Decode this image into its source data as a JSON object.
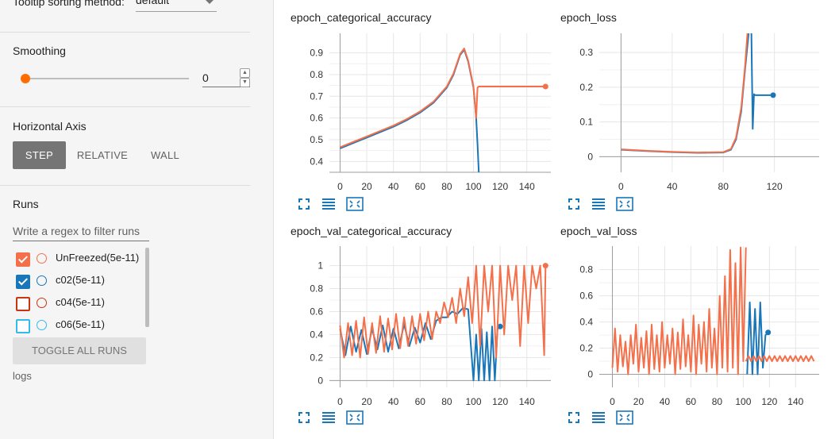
{
  "sidebar": {
    "tooltip_sorting_label": "Tooltip sorting method:",
    "tooltip_sorting_value": "default",
    "smoothing_label": "Smoothing",
    "smoothing_value": 0,
    "smoothing_input": "0",
    "horizontal_axis_label": "Horizontal Axis",
    "axis_buttons": [
      {
        "label": "STEP",
        "active": true
      },
      {
        "label": "RELATIVE",
        "active": false
      },
      {
        "label": "WALL",
        "active": false
      }
    ],
    "runs_label": "Runs",
    "runs_filter_placeholder": "Write a regex to filter runs",
    "runs": [
      {
        "name": "UnFreezed(5e-11)",
        "checked": true,
        "color": "#f4704a"
      },
      {
        "name": "c02(5e-11)",
        "checked": true,
        "color": "#1976b8"
      },
      {
        "name": "c04(5e-11)",
        "checked": false,
        "color": "#cc3311"
      },
      {
        "name": "c06(5e-11)",
        "checked": false,
        "color": "#33bbee"
      }
    ],
    "toggle_all_label": "TOGGLE ALL RUNS",
    "logs_label": "logs"
  },
  "colors": {
    "orange": "#f4704a",
    "blue": "#1976b8",
    "accent": "#ff6d00"
  },
  "chart_data": [
    {
      "type": "line",
      "title": "epoch_categorical_accuracy",
      "xlim": [
        -8,
        158
      ],
      "ylim": [
        0.35,
        0.99
      ],
      "xticks": [
        0,
        20,
        40,
        60,
        80,
        100,
        120,
        140
      ],
      "yticks": [
        0.4,
        0.5,
        0.6,
        0.7,
        0.8,
        0.9
      ],
      "grid": true,
      "series": [
        {
          "color": "#1976b8",
          "x": [
            0,
            10,
            20,
            30,
            40,
            50,
            60,
            70,
            80,
            85,
            90,
            93,
            96,
            100,
            102,
            103,
            104
          ],
          "y": [
            0.46,
            0.485,
            0.51,
            0.535,
            0.56,
            0.59,
            0.625,
            0.67,
            0.74,
            0.8,
            0.89,
            0.915,
            0.86,
            0.74,
            0.6,
            0.48,
            0.35
          ]
        },
        {
          "color": "#f4704a",
          "x": [
            0,
            10,
            20,
            30,
            40,
            50,
            60,
            70,
            80,
            85,
            90,
            93,
            96,
            100,
            102,
            103,
            104,
            154
          ],
          "y": [
            0.465,
            0.49,
            0.515,
            0.54,
            0.565,
            0.595,
            0.63,
            0.675,
            0.745,
            0.805,
            0.895,
            0.92,
            0.865,
            0.745,
            0.6,
            0.74,
            0.745,
            0.745
          ],
          "end_marker": true
        }
      ]
    },
    {
      "type": "line",
      "title": "epoch_loss",
      "xlim": [
        -17,
        155
      ],
      "ylim": [
        -0.045,
        0.355
      ],
      "xticks": [
        0,
        40,
        80,
        120
      ],
      "yticks": [
        0,
        0.1,
        0.2,
        0.3
      ],
      "grid": true,
      "series": [
        {
          "color": "#1976b8",
          "x": [
            0,
            20,
            40,
            60,
            80,
            86,
            90,
            94,
            97,
            100,
            102,
            103,
            104,
            105,
            108,
            119
          ],
          "y": [
            0.02,
            0.016,
            0.013,
            0.011,
            0.012,
            0.02,
            0.05,
            0.13,
            0.25,
            0.36,
            0.36,
            0.08,
            0.18,
            0.177,
            0.177,
            0.177
          ],
          "end_marker": true
        },
        {
          "color": "#f4704a",
          "x": [
            0,
            20,
            40,
            60,
            80,
            86,
            90,
            94,
            97,
            99
          ],
          "y": [
            0.021,
            0.017,
            0.014,
            0.012,
            0.013,
            0.022,
            0.055,
            0.14,
            0.26,
            0.36
          ]
        }
      ]
    },
    {
      "type": "line",
      "title": "epoch_val_categorical_accuracy",
      "xlim": [
        -8,
        158
      ],
      "ylim": [
        -0.06,
        1.17
      ],
      "xticks": [
        0,
        20,
        40,
        60,
        80,
        100,
        120,
        140
      ],
      "yticks": [
        0,
        0.2,
        0.4,
        0.6,
        0.8,
        1
      ],
      "grid": true,
      "series": [
        {
          "color": "#1976b8",
          "x": [
            0,
            4,
            8,
            12,
            16,
            20,
            24,
            28,
            32,
            36,
            40,
            44,
            48,
            52,
            56,
            60,
            64,
            68,
            72,
            76,
            80,
            84,
            88,
            92,
            96,
            100,
            102,
            104,
            106,
            108,
            110,
            112,
            114,
            116,
            118,
            120
          ],
          "y": [
            0.45,
            0.22,
            0.47,
            0.25,
            0.44,
            0.23,
            0.45,
            0.27,
            0.48,
            0.25,
            0.45,
            0.28,
            0.49,
            0.3,
            0.46,
            0.33,
            0.5,
            0.36,
            0.52,
            0.55,
            0.55,
            0.6,
            0.58,
            0.63,
            0.62,
            0.0,
            0.4,
            0.0,
            0.45,
            0.0,
            0.42,
            0.0,
            0.47,
            0.0,
            0.45,
            0.47
          ],
          "end_marker": true
        },
        {
          "color": "#f4704a",
          "x": [
            0,
            3,
            6,
            9,
            12,
            15,
            18,
            21,
            24,
            27,
            30,
            33,
            36,
            39,
            42,
            45,
            48,
            51,
            54,
            57,
            60,
            63,
            66,
            69,
            72,
            75,
            78,
            81,
            84,
            87,
            90,
            93,
            96,
            99,
            102,
            105,
            108,
            111,
            114,
            117,
            120,
            123,
            126,
            129,
            132,
            135,
            138,
            141,
            144,
            147,
            150,
            153,
            154
          ],
          "y": [
            0.48,
            0.2,
            0.5,
            0.22,
            0.52,
            0.2,
            0.55,
            0.23,
            0.5,
            0.24,
            0.56,
            0.25,
            0.54,
            0.27,
            0.58,
            0.28,
            0.55,
            0.3,
            0.56,
            0.32,
            0.58,
            0.35,
            0.6,
            0.36,
            0.6,
            0.5,
            0.68,
            0.55,
            0.72,
            0.5,
            0.8,
            0.56,
            0.9,
            0.5,
            1.0,
            0.3,
            1.0,
            0.6,
            1.0,
            0.2,
            1.0,
            0.4,
            1.0,
            0.7,
            1.0,
            0.3,
            1.0,
            0.5,
            1.0,
            0.8,
            1.0,
            0.22,
            1.0
          ],
          "end_marker": true
        }
      ]
    },
    {
      "type": "line",
      "title": "epoch_val_loss",
      "xlim": [
        -10,
        158
      ],
      "ylim": [
        -0.1,
        0.98
      ],
      "xticks": [
        0,
        20,
        40,
        60,
        80,
        100,
        120,
        140
      ],
      "yticks": [
        0,
        0.2,
        0.4,
        0.6,
        0.8
      ],
      "grid": true,
      "series": [
        {
          "color": "#f4704a",
          "x": [
            0,
            2,
            4,
            6,
            8,
            10,
            12,
            14,
            16,
            18,
            20,
            22,
            24,
            26,
            28,
            30,
            32,
            34,
            36,
            38,
            40,
            42,
            44,
            46,
            48,
            50,
            52,
            54,
            56,
            58,
            60,
            62,
            64,
            66,
            68,
            70,
            72,
            74,
            76,
            78,
            80,
            82,
            84,
            86,
            88,
            90,
            92,
            94,
            96,
            98,
            100,
            102
          ],
          "y": [
            0.05,
            0.35,
            0.02,
            0.3,
            0.06,
            0.25,
            0.0,
            0.3,
            0.08,
            0.38,
            0.02,
            0.28,
            0.05,
            0.33,
            0.0,
            0.38,
            0.04,
            0.3,
            0.02,
            0.4,
            0.05,
            0.3,
            0.08,
            0.35,
            0.0,
            0.32,
            0.04,
            0.42,
            0.06,
            0.3,
            0.02,
            0.45,
            0.0,
            0.38,
            0.08,
            0.4,
            0.02,
            0.5,
            0.05,
            0.35,
            0.0,
            0.6,
            0.05,
            0.75,
            0.02,
            0.95,
            0.05,
            0.85,
            0.0,
            0.97,
            0.1,
            0.97
          ]
        },
        {
          "color": "#1976b8",
          "x": [
            103,
            105,
            107,
            109,
            111,
            113,
            115,
            117,
            119
          ],
          "y": [
            0.0,
            0.55,
            0.0,
            0.5,
            0.0,
            0.55,
            0.05,
            0.3,
            0.32
          ],
          "end_marker": true
        },
        {
          "color": "#f4704a",
          "x": [
            102,
            104,
            106,
            108,
            110,
            112,
            114,
            116,
            118,
            120,
            122,
            124,
            126,
            128,
            130,
            132,
            134,
            136,
            138,
            140,
            142,
            144,
            146,
            148,
            150,
            152,
            154
          ],
          "y": [
            0.1,
            0.14,
            0.1,
            0.14,
            0.1,
            0.14,
            0.1,
            0.14,
            0.1,
            0.14,
            0.1,
            0.14,
            0.1,
            0.14,
            0.1,
            0.14,
            0.1,
            0.14,
            0.1,
            0.14,
            0.1,
            0.14,
            0.1,
            0.14,
            0.1,
            0.14,
            0.1
          ]
        }
      ]
    }
  ],
  "chart_icons": [
    "fullscreen-icon",
    "legend-icon",
    "fit-domain-icon"
  ]
}
